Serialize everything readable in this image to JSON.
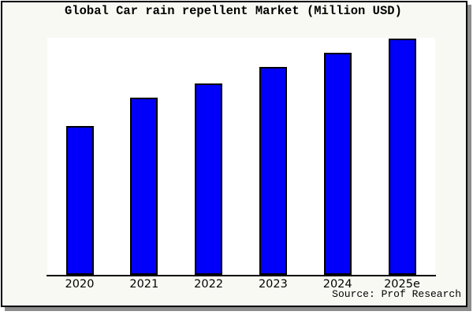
{
  "title": "Global Car rain repellent Market (Million USD)",
  "source_note": "Source: Prof Research",
  "colors": {
    "bar_fill": "#0000fa",
    "bar_edge": "#000000",
    "figure_bg": "#f9f9f4",
    "plot_bg": "#ffffff",
    "frame_border": "#000000",
    "frame_shadow": "#8c8c8c",
    "axis": "#000000",
    "text": "#000000"
  },
  "chart_data": {
    "type": "bar",
    "title": "Global Car rain repellent Market (Million USD)",
    "categories": [
      "2020",
      "2021",
      "2022",
      "2023",
      "2024",
      "2025e"
    ],
    "values": [
      63,
      75,
      81,
      88,
      94,
      100
    ],
    "value_unit": "relative index (no y-axis labels shown; 2025e bar = 100)",
    "xlabel": "",
    "ylabel": "",
    "ylim": [
      0,
      100
    ],
    "grid": false,
    "legend": "none",
    "bar_color": "#0000fa",
    "bar_edge_color": "#000000",
    "annotations": [
      "Source: Prof Research"
    ]
  }
}
